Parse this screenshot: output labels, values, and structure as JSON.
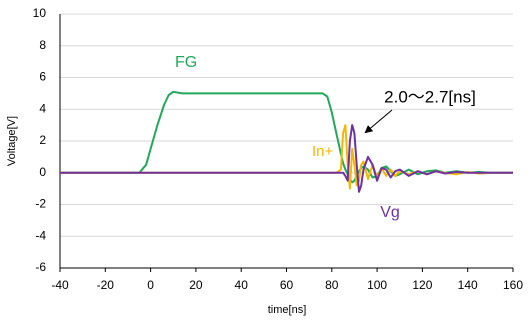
{
  "chart_data": {
    "type": "line",
    "x_label": "time[ns]",
    "y_label": "Voltage[V]",
    "x": [
      -40,
      -10,
      -5,
      -2,
      0,
      3,
      6,
      8,
      10,
      14,
      20,
      40,
      60,
      76,
      78,
      80,
      82,
      84,
      85,
      86,
      87,
      88,
      89,
      90,
      91,
      92,
      93,
      94,
      96,
      98,
      100,
      102,
      104,
      106,
      108,
      110,
      114,
      118,
      122,
      126,
      130,
      135,
      140,
      145,
      150,
      160
    ],
    "series": [
      {
        "name": "FG",
        "color": "#22a85a",
        "values": [
          0,
          0,
          0,
          0.5,
          1.5,
          3,
          4.3,
          4.9,
          5.1,
          5,
          5,
          5,
          5,
          5,
          4.8,
          3.8,
          2.5,
          1.2,
          0.6,
          0.2,
          -0.1,
          -0.4,
          -0.6,
          -0.5,
          -0.2,
          0.1,
          0.3,
          0.4,
          0.2,
          -0.3,
          -0.2,
          0.3,
          0.4,
          0.1,
          -0.2,
          -0.1,
          0.2,
          -0.1,
          0.1,
          0.15,
          0,
          0.1,
          0,
          0.05,
          0,
          0
        ]
      },
      {
        "name": "In+",
        "color": "#f5b800",
        "values": [
          0,
          0,
          0,
          0,
          0,
          0,
          0,
          0,
          0,
          0,
          0,
          0,
          0,
          0,
          0,
          0,
          0,
          0.2,
          2.5,
          3,
          0.5,
          -1,
          1.5,
          0.5,
          -0.8,
          -0.5,
          0.5,
          0.7,
          -0.4,
          0.5,
          -0.3,
          0.3,
          -0.2,
          0.2,
          -0.2,
          0.1,
          -0.1,
          0.1,
          -0.1,
          0.1,
          0,
          -0.1,
          0.05,
          -0.05,
          0,
          0
        ]
      },
      {
        "name": "Vg",
        "color": "#7030a0",
        "values": [
          0,
          0,
          0,
          0,
          0,
          0,
          0,
          0,
          0,
          0,
          0,
          0,
          0,
          0,
          0,
          0,
          0,
          0,
          0,
          -0.2,
          -0.5,
          2,
          3,
          2.5,
          0.5,
          -1.2,
          -0.8,
          0.2,
          1,
          0.5,
          -0.5,
          0.3,
          0.2,
          -0.3,
          0.1,
          0.2,
          -0.2,
          0.1,
          -0.1,
          0.1,
          -0.05,
          0.05,
          0,
          0,
          0,
          0
        ]
      }
    ],
    "annotations": [
      {
        "text": "FG",
        "color": "#22a85a"
      },
      {
        "text": "In+",
        "color": "#f5b800"
      },
      {
        "text": "Vg",
        "color": "#7030a0"
      },
      {
        "text": "2.0～2.7[ns]",
        "color": "#000000"
      }
    ],
    "xlim": [
      -40,
      160
    ],
    "xticks": [
      -40,
      -20,
      0,
      20,
      40,
      60,
      80,
      100,
      120,
      140,
      160
    ],
    "ylim": [
      -6,
      10
    ],
    "yticks": [
      -6,
      -4,
      -2,
      0,
      2,
      4,
      6,
      8,
      10
    ],
    "grid": true
  }
}
